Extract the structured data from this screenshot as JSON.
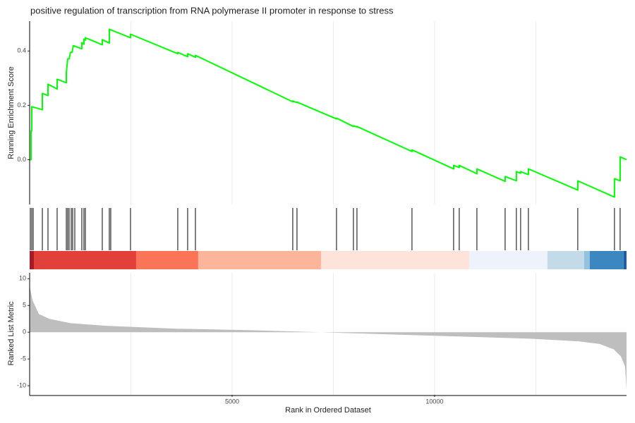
{
  "chart_data": {
    "type": "gsea",
    "title": "positive regulation of transcription from RNA polymerase II promoter in response to stress",
    "xlabel": "Rank in Ordered Dataset",
    "xlim": [
      0,
      14740
    ],
    "xticks": [
      5000,
      10000
    ],
    "xminor": [
      2500,
      7500,
      12500
    ],
    "grid": true,
    "ylabel": "Running Enrichment Score",
    "ylim": [
      -0.165,
      0.51
    ],
    "yticks": [
      {
        "value": 0,
        "label": "0.0"
      },
      0.2,
      0.4
    ],
    "es_color": "#00ff00",
    "es_x": [
      0,
      35,
      35,
      52,
      52,
      314,
      314,
      453,
      453,
      679,
      679,
      906,
      906,
      940,
      975,
      1010,
      1045,
      1080,
      1289,
      1289,
      1341,
      1341,
      1376,
      1376,
      1794,
      1794,
      1968,
      1968,
      2491,
      2491,
      3658,
      3658,
      3902,
      3902,
      4094,
      4094,
      6498,
      6498,
      6602,
      6602,
      7578,
      7578,
      7996,
      7996,
      8083,
      8083,
      9442,
      9442,
      10470,
      10470,
      10609,
      10609,
      11045,
      11045,
      11742,
      11742,
      12020,
      12020,
      12125,
      12125,
      12317,
      12317,
      13536,
      13536,
      14442,
      14442,
      14582,
      14582,
      14740
    ],
    "es_y": [
      0,
      0,
      0.106,
      0.106,
      0.195,
      0.184,
      0.244,
      0.236,
      0.278,
      0.26,
      0.296,
      0.283,
      0.319,
      0.371,
      0.371,
      0.395,
      0.395,
      0.42,
      0.408,
      0.431,
      0.425,
      0.444,
      0.44,
      0.449,
      0.423,
      0.442,
      0.429,
      0.48,
      0.449,
      0.462,
      0.39,
      0.395,
      0.379,
      0.39,
      0.377,
      0.384,
      0.213,
      0.216,
      0.21,
      0.212,
      0.15,
      0.153,
      0.122,
      0.125,
      0.12,
      0.122,
      0.03,
      0.036,
      -0.034,
      -0.021,
      -0.029,
      -0.021,
      -0.052,
      -0.034,
      -0.08,
      -0.062,
      -0.078,
      -0.044,
      -0.05,
      -0.044,
      -0.055,
      -0.034,
      -0.112,
      -0.078,
      -0.138,
      -0.07,
      -0.078,
      0.01,
      0
    ],
    "hits": [
      17,
      52,
      87,
      314,
      453,
      679,
      906,
      940,
      975,
      1028,
      1063,
      1115,
      1289,
      1341,
      1376,
      1794,
      1968,
      2003,
      2491,
      3658,
      3902,
      4094,
      6498,
      6602,
      7578,
      7996,
      8083,
      9442,
      10470,
      10609,
      11045,
      11742,
      12020,
      12125,
      12317,
      13536,
      14442,
      14582
    ],
    "color_bar": [
      {
        "start": 0,
        "end": 105,
        "color": "#a51c24"
      },
      {
        "start": 105,
        "end": 2630,
        "color": "#e2403b"
      },
      {
        "start": 2630,
        "end": 4163,
        "color": "#fa7558"
      },
      {
        "start": 4163,
        "end": 7195,
        "color": "#fcb49b"
      },
      {
        "start": 7195,
        "end": 10853,
        "color": "#fde3d9"
      },
      {
        "start": 10853,
        "end": 12786,
        "color": "#eef3fb"
      },
      {
        "start": 12786,
        "end": 13692,
        "color": "#c3dbe9"
      },
      {
        "start": 13692,
        "end": 13831,
        "color": "#92c2de"
      },
      {
        "start": 13831,
        "end": 14667,
        "color": "#3d87c0"
      },
      {
        "start": 14667,
        "end": 14740,
        "color": "#1f5fa0"
      }
    ],
    "metric_ylabel": "Ranked List Metric",
    "metric_ylim": [
      -11.7,
      11.1
    ],
    "metric_yticks": [
      10,
      5,
      0,
      -5,
      -10
    ],
    "metric_color": "#bebebe",
    "metric_x": [
      0,
      70,
      226,
      488,
      1010,
      1881,
      3623,
      5365,
      7195,
      8850,
      10592,
      12334,
      13553,
      14076,
      14424,
      14599,
      14703,
      14740
    ],
    "metric_y": [
      8.7,
      6,
      3.4,
      2.5,
      1.7,
      1.2,
      0.66,
      0.4,
      0,
      -0.4,
      -0.8,
      -1.2,
      -1.7,
      -2.2,
      -3.2,
      -4.5,
      -6.4,
      -10.7
    ]
  }
}
